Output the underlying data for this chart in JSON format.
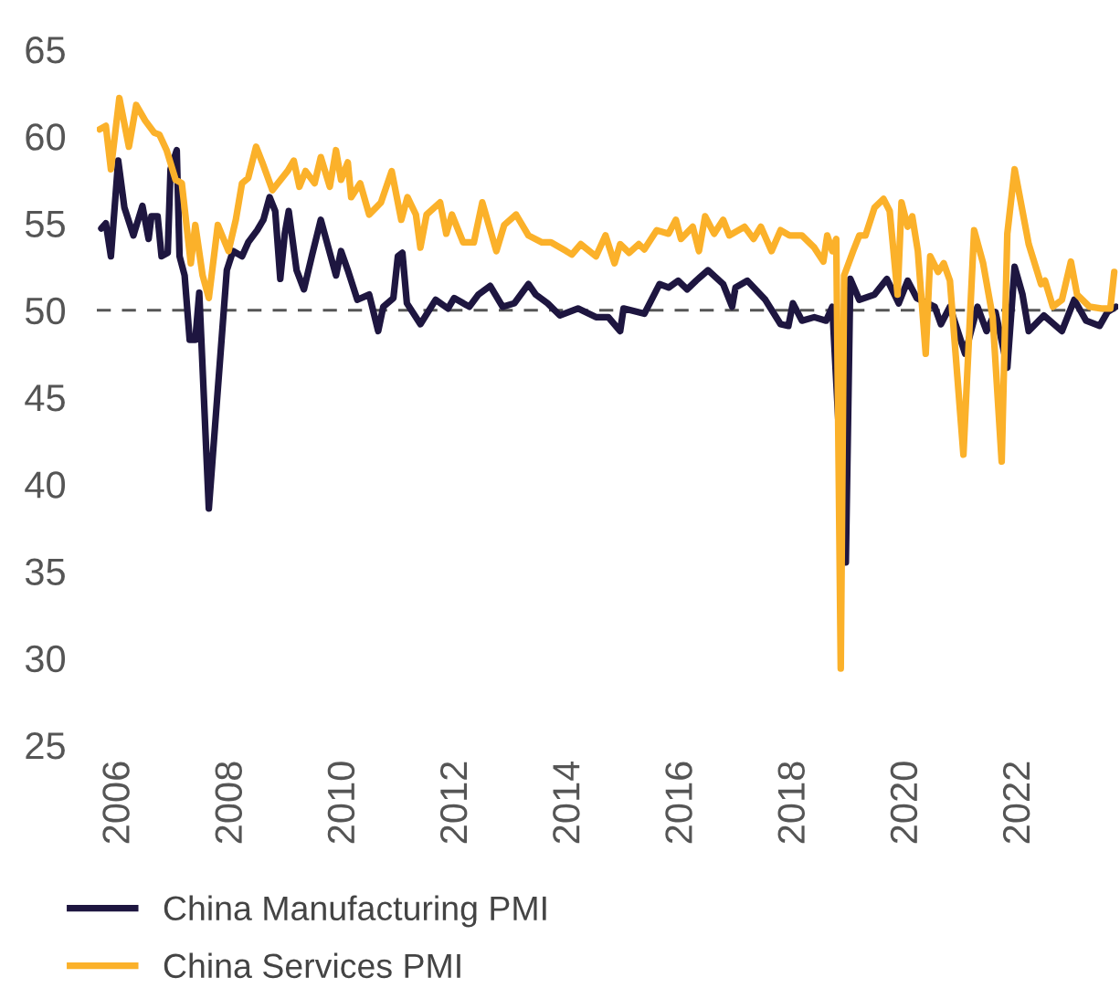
{
  "chart_data": {
    "type": "line",
    "xlim": [
      2005.6,
      2023.75
    ],
    "xticks": [
      2006,
      2008,
      2010,
      2012,
      2014,
      2016,
      2018,
      2020,
      2022
    ],
    "ylim": [
      25,
      65
    ],
    "yticks": [
      25,
      30,
      35,
      40,
      45,
      50,
      55,
      60,
      65
    ],
    "grid": false,
    "legend": "bottom",
    "line_style": "solid",
    "marker": "none",
    "ref_lines": [
      {
        "axis": "y",
        "value": 50,
        "color": "#555555",
        "line_style": "dashed"
      }
    ],
    "series": [
      {
        "name": "China Manufacturing PMI",
        "color": "#1e1640",
        "x": [
          2005.68,
          2005.76,
          2005.85,
          2005.98,
          2006.09,
          2006.25,
          2006.41,
          2006.52,
          2006.57,
          2006.68,
          2006.75,
          2006.86,
          2006.91,
          2007.02,
          2007.07,
          2007.16,
          2007.25,
          2007.35,
          2007.42,
          2007.59,
          2007.91,
          2008.02,
          2008.18,
          2008.29,
          2008.45,
          2008.56,
          2008.67,
          2008.77,
          2008.86,
          2008.94,
          2009.01,
          2009.15,
          2009.28,
          2009.42,
          2009.58,
          2009.74,
          2009.85,
          2009.94,
          2010.06,
          2010.23,
          2010.44,
          2010.6,
          2010.69,
          2010.87,
          2010.95,
          2011.03,
          2011.11,
          2011.35,
          2011.62,
          2011.84,
          2011.95,
          2012.22,
          2012.38,
          2012.59,
          2012.81,
          2013.02,
          2013.27,
          2013.4,
          2013.61,
          2013.83,
          2014.15,
          2014.47,
          2014.69,
          2014.9,
          2014.96,
          2015.33,
          2015.6,
          2015.76,
          2015.93,
          2016.09,
          2016.25,
          2016.46,
          2016.73,
          2016.89,
          2016.95,
          2017.16,
          2017.48,
          2017.75,
          2017.89,
          2017.97,
          2018.13,
          2018.35,
          2018.56,
          2018.67,
          2018.91,
          2018.99,
          2019.15,
          2019.42,
          2019.64,
          2019.85,
          2020.01,
          2020.17,
          2020.49,
          2020.6,
          2020.76,
          2021.03,
          2021.25,
          2021.41,
          2021.57,
          2021.78,
          2021.91,
          2022.05,
          2022.16,
          2022.43,
          2022.75,
          2022.97,
          2023.18,
          2023.42,
          2023.56,
          2023.71
        ],
        "values": [
          54.7,
          55.0,
          53.1,
          58.6,
          55.9,
          54.3,
          56.0,
          54.1,
          55.4,
          55.4,
          53.1,
          53.3,
          58.1,
          59.2,
          53.1,
          52.0,
          48.3,
          48.3,
          51.0,
          38.6,
          52.3,
          53.4,
          53.1,
          53.9,
          54.6,
          55.2,
          56.5,
          55.7,
          51.8,
          54.4,
          55.7,
          52.3,
          51.2,
          53.1,
          55.2,
          53.3,
          52.0,
          53.4,
          52.3,
          50.6,
          50.9,
          48.8,
          50.2,
          50.7,
          53.1,
          53.3,
          50.4,
          49.2,
          50.6,
          50.1,
          50.7,
          50.2,
          50.9,
          51.4,
          50.2,
          50.4,
          51.5,
          50.9,
          50.4,
          49.7,
          50.1,
          49.6,
          49.6,
          48.8,
          50.1,
          49.8,
          51.5,
          51.3,
          51.7,
          51.2,
          51.7,
          52.3,
          51.5,
          50.2,
          51.3,
          51.7,
          50.6,
          49.2,
          49.1,
          50.4,
          49.4,
          49.6,
          49.4,
          50.2,
          35.5,
          51.8,
          50.6,
          50.9,
          51.8,
          50.4,
          51.7,
          50.7,
          50.2,
          49.2,
          50.2,
          47.5,
          50.2,
          48.8,
          49.9,
          46.7,
          52.5,
          50.9,
          48.8,
          49.7,
          48.8,
          50.6,
          49.4,
          49.1,
          49.9,
          50.2
        ]
      },
      {
        "name": "China Services PMI",
        "color": "#fbb12a",
        "x": [
          2005.65,
          2005.76,
          2005.85,
          2006.0,
          2006.17,
          2006.3,
          2006.46,
          2006.62,
          2006.71,
          2006.84,
          2007.0,
          2007.11,
          2007.27,
          2007.35,
          2007.48,
          2007.59,
          2007.75,
          2007.94,
          2008.07,
          2008.18,
          2008.29,
          2008.43,
          2008.54,
          2008.72,
          2008.99,
          2009.1,
          2009.2,
          2009.31,
          2009.47,
          2009.58,
          2009.74,
          2009.85,
          2009.94,
          2010.06,
          2010.12,
          2010.28,
          2010.44,
          2010.65,
          2010.84,
          2011.01,
          2011.12,
          2011.27,
          2011.35,
          2011.46,
          2011.7,
          2011.81,
          2011.91,
          2012.11,
          2012.3,
          2012.45,
          2012.7,
          2012.84,
          2013.05,
          2013.27,
          2013.51,
          2013.67,
          2013.94,
          2014.04,
          2014.2,
          2014.47,
          2014.64,
          2014.8,
          2014.9,
          2015.06,
          2015.23,
          2015.33,
          2015.55,
          2015.76,
          2015.89,
          2015.98,
          2016.19,
          2016.3,
          2016.41,
          2016.57,
          2016.73,
          2016.84,
          2017.11,
          2017.27,
          2017.4,
          2017.59,
          2017.75,
          2017.91,
          2018.13,
          2018.35,
          2018.51,
          2018.58,
          2018.67,
          2018.74,
          2018.82,
          2018.88,
          2019.04,
          2019.15,
          2019.26,
          2019.42,
          2019.58,
          2019.69,
          2019.83,
          2019.9,
          2020.01,
          2020.09,
          2020.19,
          2020.33,
          2020.41,
          2020.55,
          2020.65,
          2020.76,
          2021.0,
          2021.19,
          2021.35,
          2021.52,
          2021.68,
          2021.78,
          2021.91,
          2022.16,
          2022.38,
          2022.45,
          2022.59,
          2022.75,
          2022.91,
          2023.02,
          2023.24,
          2023.45,
          2023.61,
          2023.68
        ],
        "values": [
          60.4,
          60.6,
          58.1,
          62.2,
          59.4,
          61.8,
          60.9,
          60.2,
          60.1,
          59.2,
          57.5,
          57.3,
          52.7,
          54.9,
          52.0,
          50.7,
          54.9,
          53.4,
          55.2,
          57.3,
          57.6,
          59.4,
          58.5,
          56.9,
          58.0,
          58.6,
          57.1,
          58.0,
          57.3,
          58.8,
          57.1,
          59.2,
          57.5,
          58.5,
          56.5,
          57.3,
          55.5,
          56.2,
          58.0,
          55.2,
          56.5,
          55.5,
          53.6,
          55.5,
          56.2,
          54.4,
          55.5,
          53.9,
          53.9,
          56.2,
          53.4,
          54.9,
          55.5,
          54.3,
          53.9,
          53.9,
          53.4,
          53.2,
          53.8,
          53.1,
          54.3,
          52.7,
          53.8,
          53.3,
          53.8,
          53.5,
          54.6,
          54.4,
          55.2,
          54.1,
          54.8,
          53.4,
          55.4,
          54.4,
          55.2,
          54.3,
          54.8,
          54.1,
          54.8,
          53.4,
          54.6,
          54.3,
          54.3,
          53.6,
          52.8,
          54.3,
          53.4,
          54.1,
          29.4,
          52.0,
          53.4,
          54.3,
          54.3,
          55.9,
          56.4,
          55.7,
          50.9,
          56.2,
          54.8,
          55.4,
          53.4,
          47.5,
          53.1,
          52.2,
          52.7,
          51.7,
          41.7,
          54.6,
          52.7,
          49.6,
          41.3,
          54.4,
          58.1,
          53.8,
          51.5,
          51.7,
          50.2,
          50.6,
          52.8,
          50.9,
          50.2,
          50.1,
          50.1,
          52.2
        ]
      }
    ]
  }
}
